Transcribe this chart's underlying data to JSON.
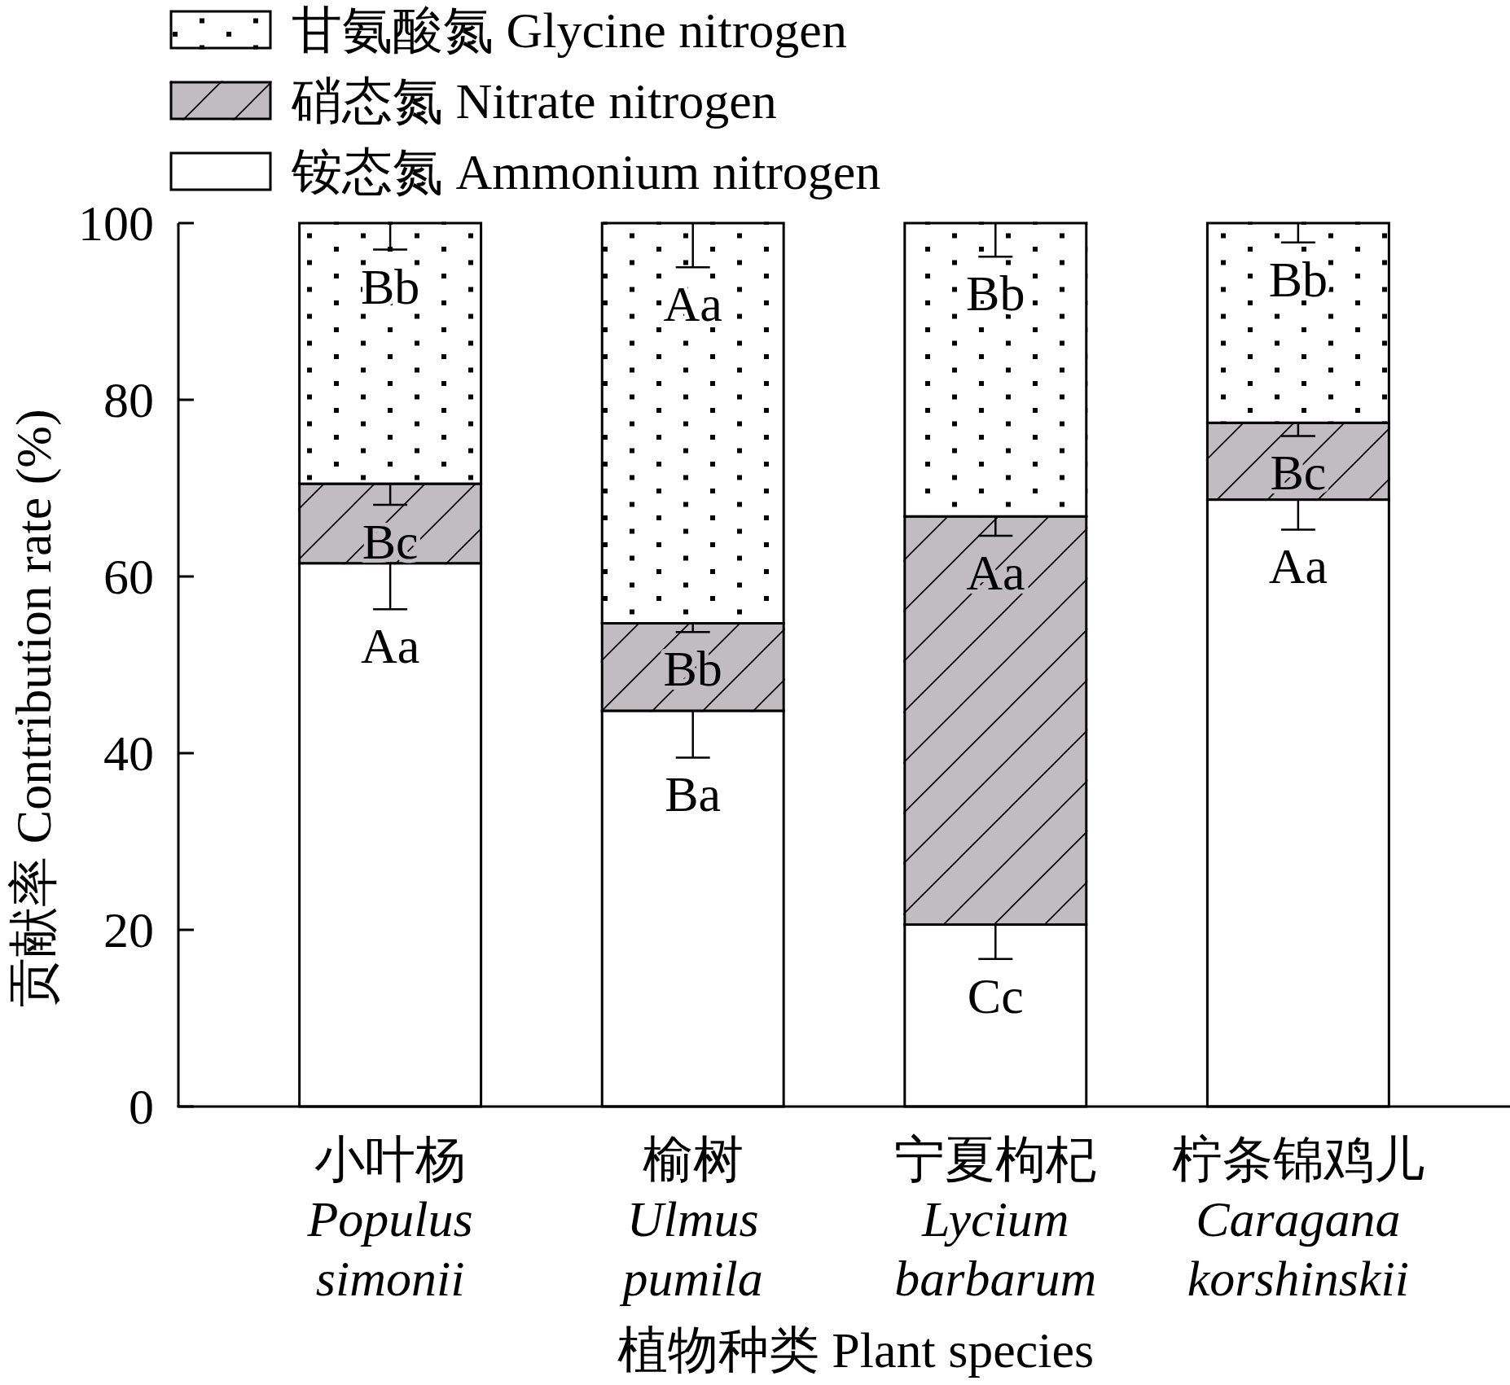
{
  "chart_data": {
    "type": "bar",
    "stacked": true,
    "categories": [
      "小叶杨 *Populus* *simonii*",
      "榆树 *Ulmus* *pumila*",
      "宁夏枸杞 *Lycium* *barbarum*",
      "柠条锦鸡儿 *Caragana* *korshinskii*"
    ],
    "series": [
      {
        "name": "铵态氮 Ammonium nitrogen",
        "color": "#ffffff",
        "values": [
          61.5,
          44.8,
          20.6,
          68.7
        ],
        "errors": [
          [
            56.3,
            61.5
          ],
          [
            39.5,
            44.8
          ],
          [
            16.7,
            20.6
          ],
          [
            65.3,
            68.7
          ]
        ],
        "value_labels": [
          "Aa",
          "Ba",
          "Cc",
          "Aa"
        ]
      },
      {
        "name": "硝态氮 Nitrate nitrogen",
        "color": "#c0bcc0",
        "values": [
          9.0,
          9.9,
          46.2,
          8.7
        ],
        "errors": [
          [
            68.1,
            70.5
          ],
          [
            53.7,
            54.7
          ],
          [
            64.6,
            66.8
          ],
          [
            75.9,
            77.4
          ]
        ],
        "value_labels": [
          "Bc",
          "Bb",
          "Aa",
          "Bc"
        ]
      },
      {
        "name": "甘氨酸氮 Glycine nitrogen",
        "color": "#ffffff",
        "values": [
          29.5,
          45.3,
          33.2,
          22.6
        ],
        "errors": [
          [
            97,
            100
          ],
          [
            95,
            100
          ],
          [
            96.2,
            100
          ],
          [
            97.8,
            100
          ]
        ],
        "value_labels": [
          "Bb",
          "Aa",
          "Bb",
          "Bb"
        ]
      }
    ],
    "xlabel": "植物种类 Plant species",
    "ylabel": "贡献率 Contribution rate (%)",
    "ylim": [
      0,
      100
    ],
    "yticks": [
      0,
      20,
      40,
      60,
      80,
      100
    ],
    "legend": "top left"
  }
}
